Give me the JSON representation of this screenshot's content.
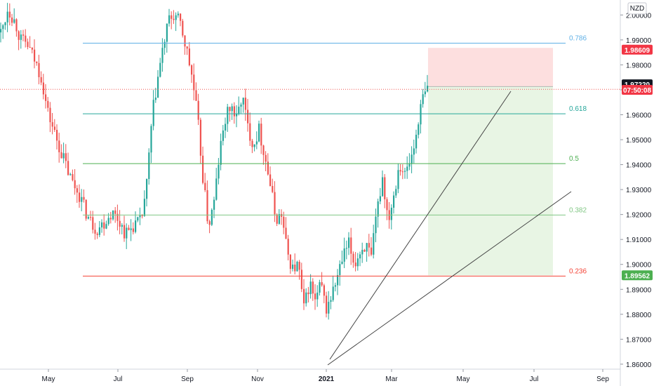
{
  "chart_data": {
    "type": "candlestick",
    "currency": "NZD",
    "y_range": [
      1.858,
      2.006
    ],
    "y_ticks": [
      "1.86000",
      "1.87000",
      "1.88000",
      "1.89000",
      "1.90000",
      "1.91000",
      "1.92000",
      "1.93000",
      "1.94000",
      "1.95000",
      "1.96000",
      "1.97000",
      "1.98000",
      "1.99000",
      "2.00000"
    ],
    "x_ticks": [
      "May",
      "Jul",
      "Sep",
      "Nov",
      "2021",
      "Mar",
      "May",
      "Jul",
      "Sep"
    ],
    "x_tick_bold": "2021",
    "fib_levels": [
      {
        "label": "0.786",
        "price": 1.9887,
        "color": "#5fb0e6"
      },
      {
        "label": "0.618",
        "price": 1.9604,
        "color": "#26a69a"
      },
      {
        "label": "0.5",
        "price": 1.9404,
        "color": "#4caf50"
      },
      {
        "label": "0.382",
        "price": 1.9198,
        "color": "#81c784"
      },
      {
        "label": "0.236",
        "price": 1.8953,
        "color": "#f44336"
      }
    ],
    "price_badges": [
      {
        "text": "1.98609",
        "price": 1.98609,
        "bg": "#f23645"
      },
      {
        "text": "1.97220",
        "price": 1.9722,
        "bg": "#131722"
      },
      {
        "text": "07:50:08",
        "price": 1.97,
        "bg": "#f23645"
      },
      {
        "text": "1.89562",
        "price": 1.89562,
        "bg": "#4caf50"
      }
    ],
    "current_price": 1.9702,
    "position": {
      "entry": 1.9713,
      "stop": 1.9868,
      "target": 1.8956
    },
    "colors": {
      "up": "#26a69a",
      "down": "#ef5350",
      "stop_zone": "#fddcdc",
      "target_zone": "#e6f4e1"
    }
  }
}
